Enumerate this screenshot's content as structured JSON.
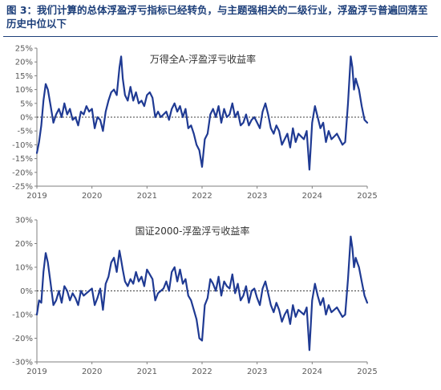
{
  "figure": {
    "title": "图 3：我们计算的总体浮盈浮亏指标已经转负，与主题强相关的二级行业，浮盈浮亏普遍回落至历史中位以下"
  },
  "colors": {
    "line": "#1f3a93",
    "axis": "#7f7f7f",
    "zero": "#000000",
    "title": "#1d3f7a"
  },
  "chart_data": [
    {
      "type": "line",
      "title": "万得全A-浮盈浮亏收益率",
      "x_ticks": [
        "2019",
        "2020",
        "2021",
        "2022",
        "2023",
        "2024",
        "2025"
      ],
      "y_ticks": [
        "25%",
        "20%",
        "15%",
        "10%",
        "5%",
        "0%",
        "-5%",
        "-10%",
        "-15%",
        "-20%",
        "-25%"
      ],
      "ylim": [
        -25,
        25
      ],
      "xlim": [
        2019.0,
        2025.0
      ],
      "grid": false,
      "series": [
        {
          "x": [
            2019.0,
            2019.04,
            2019.08,
            2019.12,
            2019.16,
            2019.2,
            2019.25,
            2019.3,
            2019.35,
            2019.4,
            2019.45,
            2019.5,
            2019.55,
            2019.6,
            2019.65,
            2019.7,
            2019.75,
            2019.8,
            2019.85,
            2019.9,
            2019.95,
            2020.0,
            2020.05,
            2020.1,
            2020.15,
            2020.2,
            2020.25,
            2020.3,
            2020.35,
            2020.4,
            2020.45,
            2020.5,
            2020.53,
            2020.56,
            2020.6,
            2020.65,
            2020.7,
            2020.75,
            2020.8,
            2020.85,
            2020.9,
            2020.95,
            2021.0,
            2021.05,
            2021.1,
            2021.15,
            2021.2,
            2021.25,
            2021.3,
            2021.35,
            2021.4,
            2021.45,
            2021.5,
            2021.55,
            2021.6,
            2021.65,
            2021.7,
            2021.75,
            2021.8,
            2021.85,
            2021.9,
            2021.95,
            2022.0,
            2022.05,
            2022.1,
            2022.15,
            2022.2,
            2022.25,
            2022.3,
            2022.35,
            2022.4,
            2022.45,
            2022.5,
            2022.55,
            2022.6,
            2022.65,
            2022.7,
            2022.75,
            2022.8,
            2022.85,
            2022.9,
            2022.95,
            2023.0,
            2023.05,
            2023.1,
            2023.15,
            2023.2,
            2023.25,
            2023.3,
            2023.35,
            2023.4,
            2023.45,
            2023.5,
            2023.55,
            2023.6,
            2023.65,
            2023.7,
            2023.75,
            2023.8,
            2023.85,
            2023.9,
            2023.95,
            2024.0,
            2024.05,
            2024.1,
            2024.15,
            2024.2,
            2024.25,
            2024.3,
            2024.35,
            2024.4,
            2024.45,
            2024.5,
            2024.55,
            2024.6,
            2024.65,
            2024.7,
            2024.73,
            2024.76,
            2024.79,
            2024.82,
            2024.85,
            2024.9,
            2024.95,
            2025.0
          ],
          "y": [
            -13,
            -9,
            -3,
            6,
            12,
            10,
            4,
            -2,
            1,
            3,
            0,
            5,
            1,
            3,
            -1,
            0,
            -3,
            2,
            1,
            4,
            2,
            3,
            -4,
            0,
            -1,
            -5,
            2,
            6,
            9,
            10,
            8,
            18,
            22,
            14,
            8,
            6,
            11,
            6,
            9,
            5,
            6,
            4,
            8,
            9,
            7,
            0,
            2,
            0,
            1,
            2,
            -1,
            3,
            5,
            2,
            4,
            0,
            3,
            -4,
            -3,
            -6,
            -10,
            -12,
            -18,
            -8,
            -6,
            1,
            3,
            0,
            4,
            -2,
            3,
            0,
            1,
            5,
            0,
            2,
            -3,
            -2,
            1,
            -3,
            -1,
            0,
            -2,
            -4,
            2,
            5,
            1,
            -4,
            -6,
            -3,
            -5,
            -10,
            -8,
            -6,
            -11,
            -4,
            -9,
            -6,
            -7,
            -8,
            -5,
            -19,
            -2,
            4,
            0,
            -4,
            -2,
            -9,
            -5,
            -8,
            -7,
            -6,
            -8,
            -10,
            -9,
            5,
            22,
            18,
            10,
            14,
            12,
            10,
            4,
            -1,
            -2
          ]
        }
      ]
    },
    {
      "type": "line",
      "title": "国证2000-浮盈浮亏收益率",
      "x_ticks": [
        "2019",
        "2020",
        "2021",
        "2022",
        "2023",
        "2024",
        "2025"
      ],
      "y_ticks": [
        "30%",
        "20%",
        "10%",
        "0%",
        "-10%",
        "-20%",
        "-30%"
      ],
      "ylim": [
        -30,
        30
      ],
      "xlim": [
        2019.0,
        2025.0
      ],
      "grid": false,
      "series": [
        {
          "x": [
            2019.0,
            2019.04,
            2019.08,
            2019.12,
            2019.16,
            2019.2,
            2019.25,
            2019.3,
            2019.35,
            2019.4,
            2019.45,
            2019.5,
            2019.55,
            2019.6,
            2019.65,
            2019.7,
            2019.75,
            2019.8,
            2019.85,
            2019.9,
            2019.95,
            2020.0,
            2020.05,
            2020.1,
            2020.15,
            2020.2,
            2020.25,
            2020.3,
            2020.35,
            2020.4,
            2020.45,
            2020.5,
            2020.53,
            2020.56,
            2020.6,
            2020.65,
            2020.7,
            2020.75,
            2020.8,
            2020.85,
            2020.9,
            2020.95,
            2021.0,
            2021.05,
            2021.1,
            2021.15,
            2021.2,
            2021.25,
            2021.3,
            2021.35,
            2021.4,
            2021.45,
            2021.5,
            2021.55,
            2021.6,
            2021.65,
            2021.7,
            2021.75,
            2021.8,
            2021.85,
            2021.9,
            2021.95,
            2022.0,
            2022.05,
            2022.1,
            2022.15,
            2022.2,
            2022.25,
            2022.3,
            2022.35,
            2022.4,
            2022.45,
            2022.5,
            2022.55,
            2022.6,
            2022.65,
            2022.7,
            2022.75,
            2022.8,
            2022.85,
            2022.9,
            2022.95,
            2023.0,
            2023.05,
            2023.1,
            2023.15,
            2023.2,
            2023.25,
            2023.3,
            2023.35,
            2023.4,
            2023.45,
            2023.5,
            2023.55,
            2023.6,
            2023.65,
            2023.7,
            2023.75,
            2023.8,
            2023.85,
            2023.9,
            2023.95,
            2024.0,
            2024.05,
            2024.1,
            2024.15,
            2024.2,
            2024.25,
            2024.3,
            2024.35,
            2024.4,
            2024.45,
            2024.5,
            2024.55,
            2024.6,
            2024.65,
            2024.7,
            2024.73,
            2024.76,
            2024.79,
            2024.82,
            2024.85,
            2024.9,
            2024.95,
            2025.0
          ],
          "y": [
            -10,
            -4,
            -5,
            8,
            16,
            12,
            3,
            -6,
            -4,
            0,
            -5,
            2,
            0,
            -4,
            -1,
            -3,
            -6,
            0,
            -2,
            -1,
            0,
            1,
            -6,
            -3,
            1,
            -8,
            3,
            6,
            12,
            14,
            8,
            17,
            13,
            9,
            4,
            2,
            5,
            3,
            8,
            4,
            6,
            2,
            9,
            7,
            5,
            -4,
            -1,
            0,
            1,
            4,
            0,
            8,
            10,
            4,
            9,
            3,
            5,
            -2,
            -4,
            -8,
            -12,
            -20,
            -21,
            -6,
            -3,
            5,
            3,
            0,
            6,
            -2,
            4,
            2,
            1,
            7,
            -1,
            3,
            -4,
            -2,
            2,
            -5,
            0,
            1,
            -3,
            -6,
            1,
            4,
            -1,
            -6,
            -9,
            -5,
            -8,
            -13,
            -10,
            -8,
            -14,
            -6,
            -11,
            -8,
            -9,
            -10,
            -7,
            -25,
            -4,
            3,
            -2,
            -6,
            -3,
            -10,
            -6,
            -9,
            -8,
            -7,
            -9,
            -11,
            -10,
            5,
            23,
            18,
            10,
            14,
            12,
            10,
            4,
            -2,
            -5
          ]
        }
      ]
    }
  ]
}
